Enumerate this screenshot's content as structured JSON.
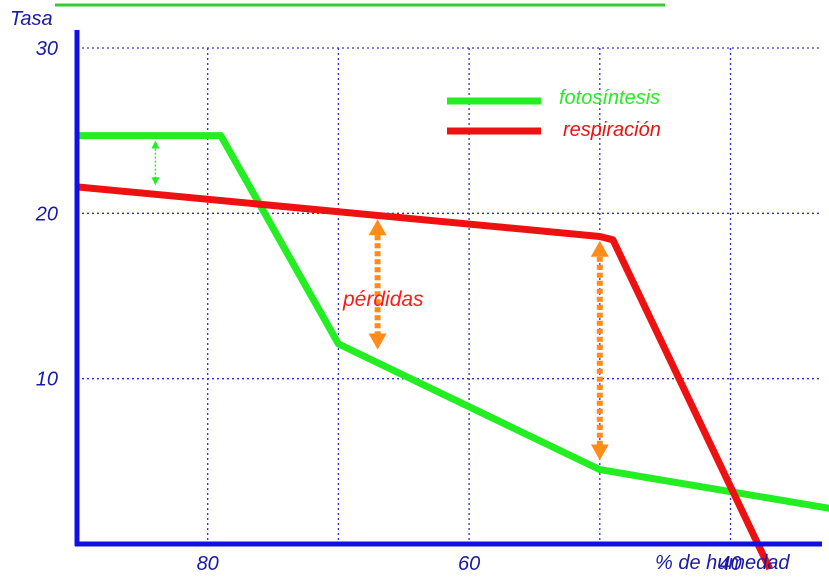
{
  "chart_data": {
    "type": "line",
    "ylabel": "Tasa",
    "xlabel": "% de humedad",
    "x_reversed": true,
    "xlim": [
      90,
      33
    ],
    "ylim": [
      0,
      30
    ],
    "x_ticks": [
      {
        "value": 80,
        "label": "80"
      },
      {
        "value": 60,
        "label": "60"
      },
      {
        "value": 40,
        "label": "40"
      }
    ],
    "y_ticks": [
      {
        "value": 10,
        "label": "10"
      },
      {
        "value": 20,
        "label": "20"
      },
      {
        "value": 30,
        "label": "30"
      }
    ],
    "grid": true,
    "grid_x": [
      80,
      70,
      60,
      50,
      40,
      30
    ],
    "grid_y": [
      10,
      20,
      30
    ],
    "legend_position": "top-right",
    "series": [
      {
        "name": "fotosíntesis",
        "color": "#22ee22",
        "points": [
          [
            90,
            24.7
          ],
          [
            79,
            24.7
          ],
          [
            70,
            12.1
          ],
          [
            50,
            4.5
          ],
          [
            20,
            0.5
          ]
        ]
      },
      {
        "name": "respiración",
        "color": "#ee1111",
        "points": [
          [
            90,
            21.6
          ],
          [
            50,
            18.6
          ],
          [
            49,
            18.4
          ],
          [
            37,
            -1.5
          ]
        ]
      }
    ],
    "annotations": [
      {
        "text": "pérdidas",
        "color": "#ff1a1a",
        "x": 61,
        "y": 14.5
      }
    ],
    "arrows": [
      {
        "color": "#22ee22",
        "x": 84,
        "y1": 24.4,
        "y2": 21.7
      },
      {
        "color": "#ff8c1a",
        "x": 67,
        "y1": 19.7,
        "y2": 11.7
      },
      {
        "color": "#ff8c1a",
        "x": 50,
        "y1": 18.4,
        "y2": 5.0
      }
    ],
    "colors": {
      "axis": "#1010e0",
      "grid": "#3030c8",
      "top_rule": "#33cc33",
      "tick_text": "#1a1aa6"
    }
  }
}
